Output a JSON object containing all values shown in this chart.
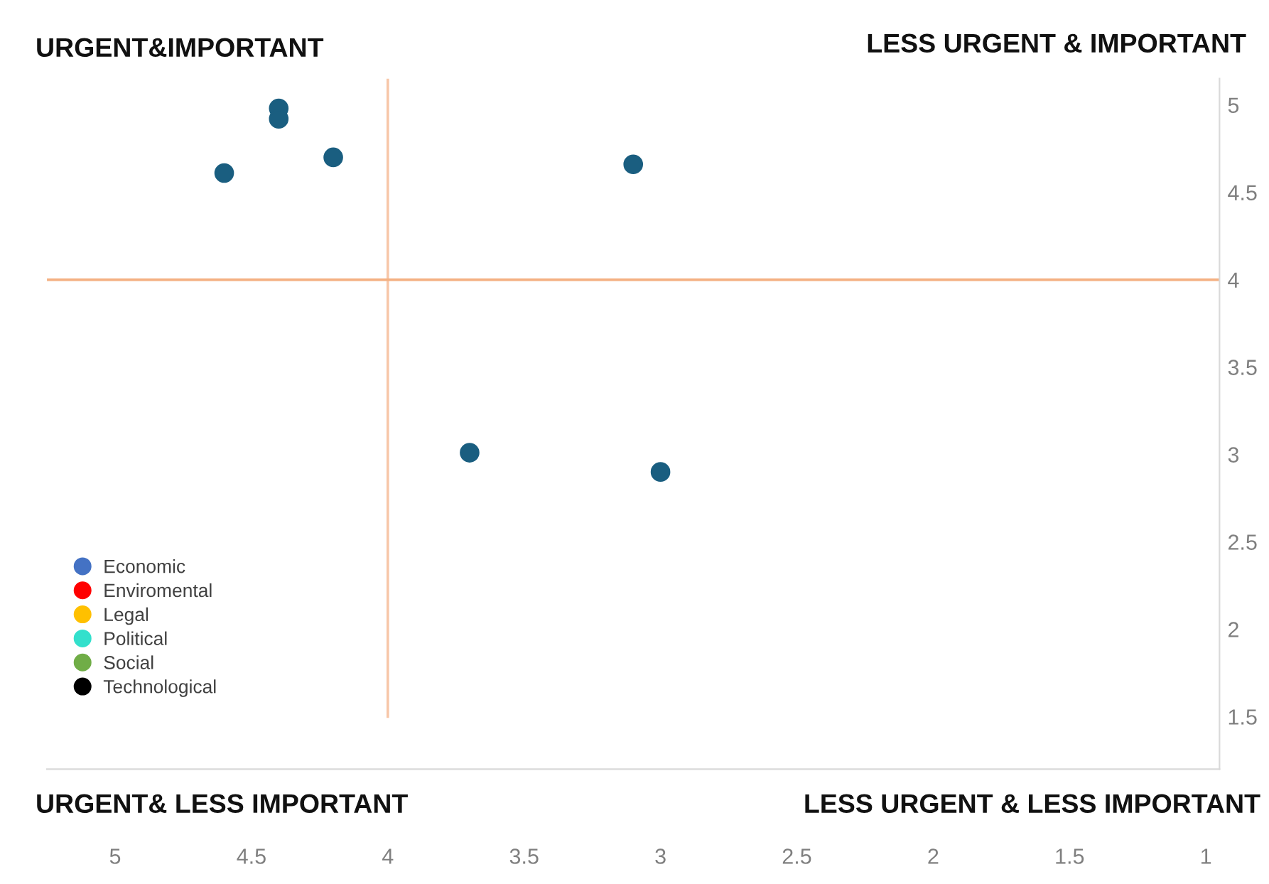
{
  "chart_data": {
    "type": "scatter",
    "x": [
      4.4,
      4.4,
      4.6,
      4.2,
      3.1,
      3.7,
      3.0
    ],
    "series": [
      {
        "color": "#1a5e80",
        "values": [
          4.98,
          4.92,
          4.61,
          4.7,
          4.66,
          3.01,
          2.9
        ]
      },
      {
        "name": "Economic",
        "color": "#4472c4",
        "values": [
          null,
          null,
          null,
          null,
          null,
          null,
          null
        ]
      },
      {
        "name": "Enviromental",
        "color": "#ff0000",
        "values": [
          null,
          null,
          null,
          null,
          null,
          null,
          null
        ]
      },
      {
        "name": "Legal",
        "color": "#ffc000",
        "values": [
          null,
          null,
          null,
          null,
          null,
          null,
          null
        ]
      },
      {
        "name": "Political",
        "color": "#33e0cc",
        "values": [
          null,
          null,
          null,
          null,
          null,
          null,
          null
        ]
      },
      {
        "name": "Social",
        "color": "#70ad47",
        "values": [
          null,
          null,
          null,
          null,
          null,
          null,
          null
        ]
      },
      {
        "name": "Technological",
        "color": "#000000",
        "values": [
          null,
          null,
          null,
          null,
          null,
          null,
          null
        ]
      }
    ],
    "xlim": [
      5.25,
      0.95
    ],
    "xticks": [
      5,
      4.5,
      4,
      3.5,
      3,
      2.5,
      2,
      1.5,
      1
    ],
    "ylim": [
      1.2,
      5.15
    ],
    "yticks": [
      1.5,
      2,
      2.5,
      3,
      3.5,
      4,
      4.5,
      5
    ],
    "ref_lines": [
      {
        "axis": "x",
        "value": 4,
        "color": "#f7c6a8"
      },
      {
        "axis": "y",
        "value": 4,
        "color": "#f4b183"
      }
    ],
    "annotations": [
      "URGENT&IMPORTANT",
      "LESS URGENT & IMPORTANT",
      "URGENT& LESS IMPORTANT",
      "LESS URGENT & LESS IMPORTANT"
    ],
    "legend": "bottom left",
    "marker": "circle",
    "grid": false
  }
}
